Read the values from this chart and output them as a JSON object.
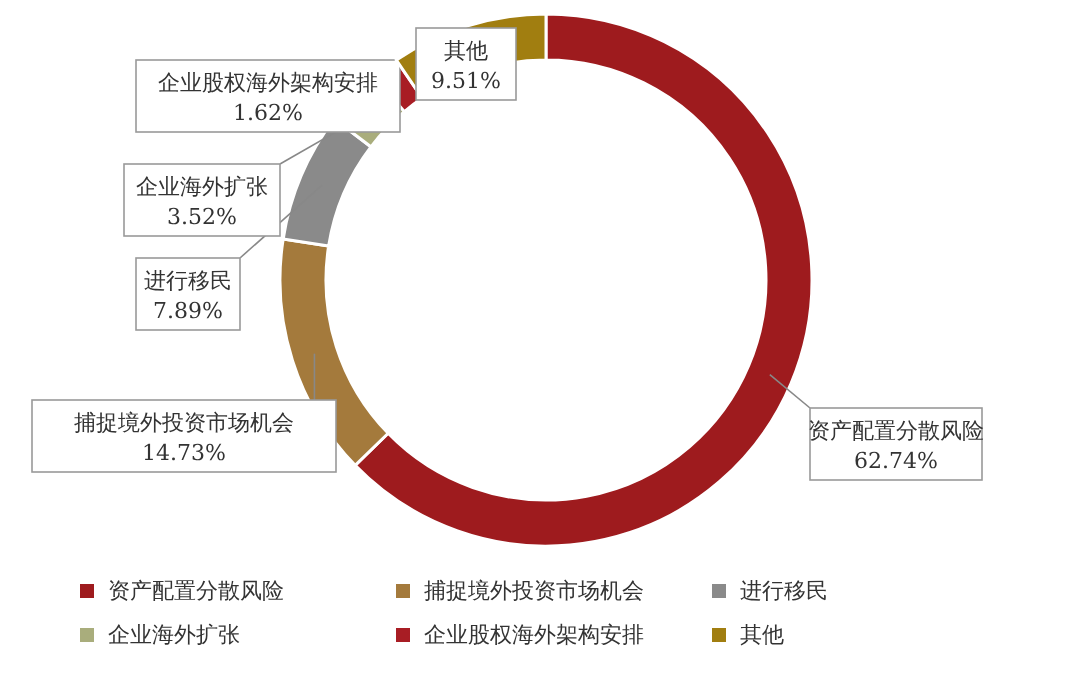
{
  "chart_data": {
    "type": "donut",
    "categories": [
      "资产配置分散风险",
      "捕捉境外投资市场机会",
      "进行移民",
      "企业海外扩张",
      "企业股权海外架构安排",
      "其他"
    ],
    "values": [
      62.74,
      14.73,
      7.89,
      3.52,
      1.62,
      9.51
    ],
    "value_labels": [
      "62.74%",
      "14.73%",
      "7.89%",
      "3.52%",
      "1.62%",
      "9.51%"
    ],
    "colors": [
      "#9e1b1e",
      "#a47a3c",
      "#8a8a8a",
      "#a9ad7c",
      "#a81d24",
      "#a17e10"
    ],
    "legend": "bottom"
  }
}
